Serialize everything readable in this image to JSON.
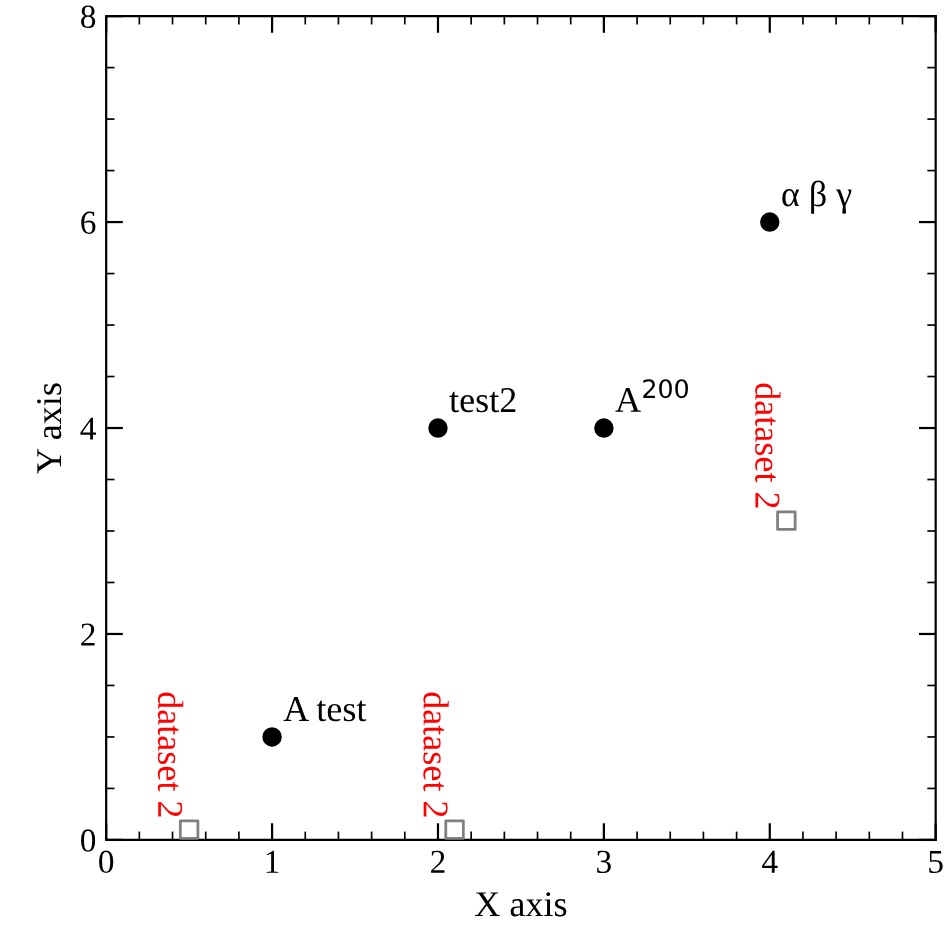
{
  "chart_data": {
    "type": "scatter",
    "xlabel": "X axis",
    "ylabel": "Y axis",
    "xlim": [
      0,
      5
    ],
    "ylim": [
      0,
      8
    ],
    "xticks": [
      0,
      1,
      2,
      3,
      4,
      5
    ],
    "yticks": [
      0,
      2,
      4,
      6,
      8
    ],
    "grid": false,
    "legend": false,
    "series": [
      {
        "color": "#000000",
        "marker": "circle",
        "x": [
          1,
          2,
          3,
          4
        ],
        "values": [
          1,
          4,
          4,
          6
        ]
      },
      {
        "name": "dataset 2",
        "color": "#808080",
        "marker": "square",
        "x": [
          0.5,
          2.1,
          4.1
        ],
        "values": [
          0.1,
          0.1,
          3.1
        ]
      }
    ],
    "annotations": [
      {
        "text": "A test",
        "x": 1,
        "y": 1
      },
      {
        "text": "test2",
        "x": 2,
        "y": 4
      },
      {
        "text": "A$^{200}$",
        "x": 3,
        "y": 4
      },
      {
        "text": "α β γ",
        "x": 4,
        "y": 6
      }
    ]
  }
}
